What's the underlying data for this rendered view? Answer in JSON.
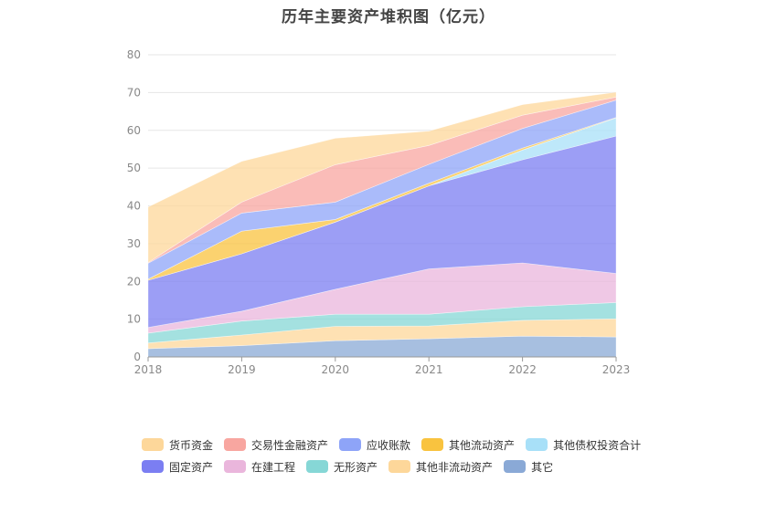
{
  "chart_data": {
    "type": "area",
    "stacked": true,
    "title": "历年主要资产堆积图（亿元）",
    "categories": [
      "2018",
      "2019",
      "2020",
      "2021",
      "2022",
      "2023"
    ],
    "ylim": [
      0,
      80
    ],
    "yticks": [
      0,
      10,
      20,
      30,
      40,
      50,
      60,
      70,
      80
    ],
    "grid": true,
    "legend_position": "bottom",
    "series": [
      {
        "name": "其它",
        "color": "#8aa9d6",
        "values": [
          2.2,
          3.0,
          4.3,
          4.8,
          5.5,
          5.3
        ]
      },
      {
        "name": "其他非流动资产",
        "color": "#fdd79a",
        "values": [
          1.5,
          2.8,
          3.8,
          3.4,
          4.2,
          4.8
        ]
      },
      {
        "name": "无形资产",
        "color": "#86d7d6",
        "values": [
          2.6,
          3.7,
          3.2,
          3.1,
          3.6,
          4.3
        ]
      },
      {
        "name": "在建工程",
        "color": "#eab6dc",
        "values": [
          1.5,
          2.6,
          6.6,
          12.0,
          11.6,
          7.7
        ]
      },
      {
        "name": "固定资产",
        "color": "#7b7ef2",
        "values": [
          12.5,
          15.2,
          17.8,
          22.0,
          27.3,
          36.4
        ]
      },
      {
        "name": "其他债权投资合计",
        "color": "#a8e0f8",
        "values": [
          0,
          0,
          0,
          0,
          2.6,
          4.8
        ]
      },
      {
        "name": "其他流动资产",
        "color": "#f9c33f",
        "values": [
          0.3,
          6.0,
          0.7,
          0.7,
          0.5,
          0.1
        ]
      },
      {
        "name": "应收账款",
        "color": "#8ea4f8",
        "values": [
          4.2,
          4.8,
          4.6,
          5.0,
          5.2,
          4.6
        ]
      },
      {
        "name": "交易性金融资产",
        "color": "#f8a6a0",
        "values": [
          0.2,
          2.9,
          9.9,
          5.0,
          3.5,
          0.8
        ]
      },
      {
        "name": "货币资金",
        "color": "#fdd79a",
        "values": [
          14.7,
          10.8,
          7.0,
          3.8,
          2.8,
          1.3
        ]
      }
    ]
  },
  "legend": {
    "row1": [
      {
        "label": "货币资金",
        "color": "#fdd79a"
      },
      {
        "label": "交易性金融资产",
        "color": "#f8a6a0"
      },
      {
        "label": "应收账款",
        "color": "#8ea4f8"
      },
      {
        "label": "其他流动资产",
        "color": "#f9c33f"
      },
      {
        "label": "其他债权投资合计",
        "color": "#a8e0f8"
      }
    ],
    "row2": [
      {
        "label": "固定资产",
        "color": "#7b7ef2"
      },
      {
        "label": "在建工程",
        "color": "#eab6dc"
      },
      {
        "label": "无形资产",
        "color": "#86d7d6"
      },
      {
        "label": "其他非流动资产",
        "color": "#fdd79a"
      },
      {
        "label": "其它",
        "color": "#8aa9d6"
      }
    ]
  }
}
